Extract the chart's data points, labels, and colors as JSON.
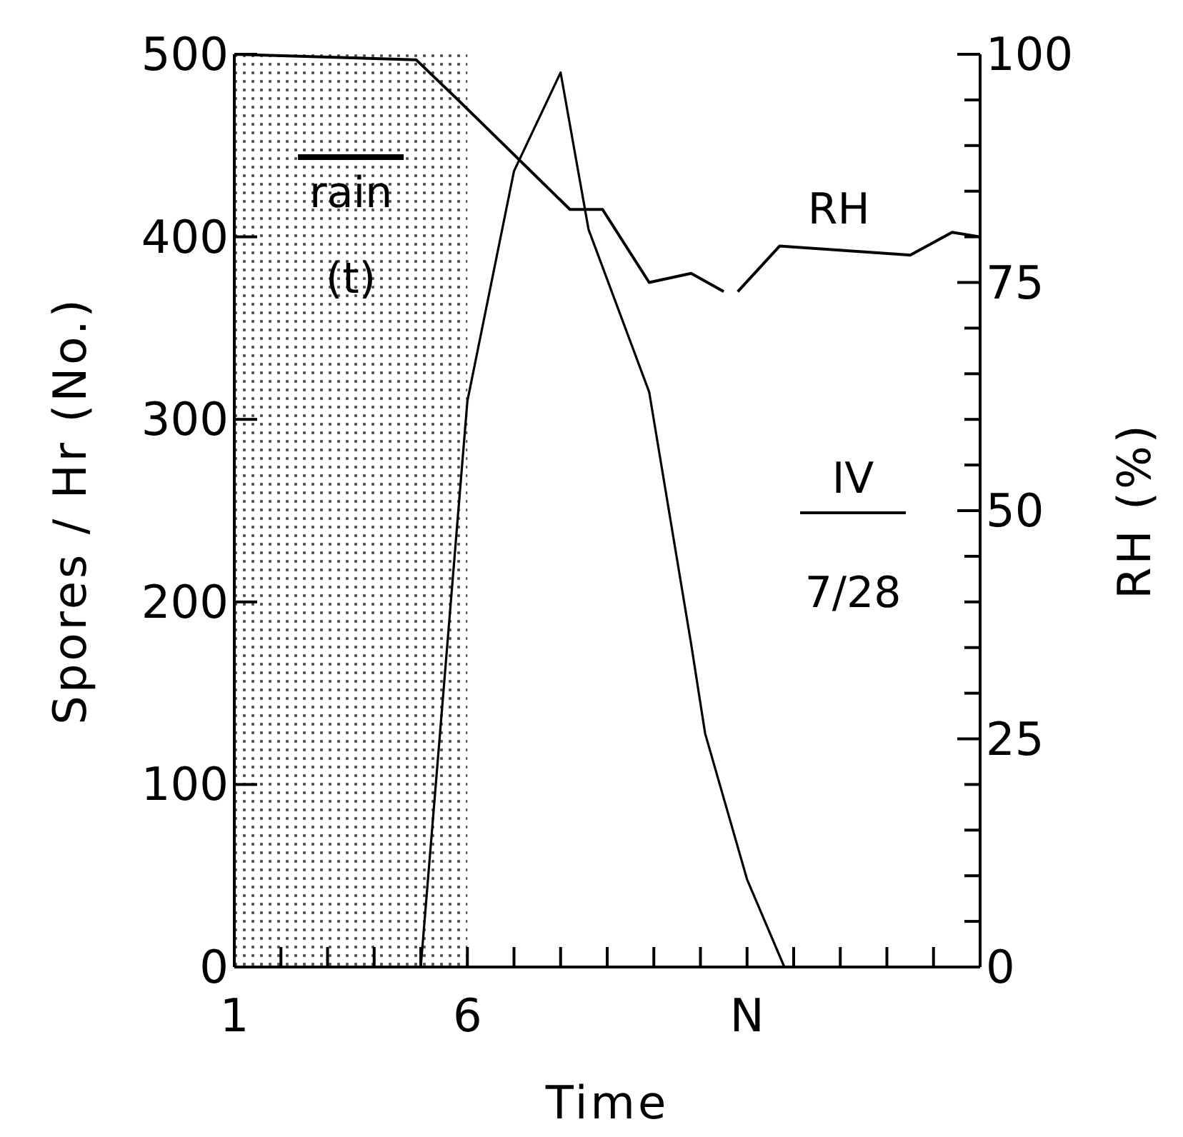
{
  "chart_data": {
    "type": "line",
    "xlabel": "Time",
    "ylabel": "Spores / Hr (No.)",
    "y2label": "RH (%)",
    "xlim": [
      1,
      17
    ],
    "xticks": [
      1,
      {
        "value": 2,
        "label": null
      },
      {
        "value": 3,
        "label": null
      },
      {
        "value": 4,
        "label": null
      },
      {
        "value": 5,
        "label": null
      },
      6,
      {
        "value": 7,
        "label": null
      },
      {
        "value": 8,
        "label": null
      },
      {
        "value": 9,
        "label": null
      },
      {
        "value": 10,
        "label": null
      },
      {
        "value": 11,
        "label": null
      },
      {
        "value": 12,
        "label": "N"
      },
      {
        "value": 13,
        "label": null
      },
      {
        "value": 14,
        "label": null
      },
      {
        "value": 15,
        "label": null
      },
      {
        "value": 16,
        "label": null
      }
    ],
    "ylim": [
      0,
      500
    ],
    "yticks": [
      0,
      100,
      200,
      300,
      400,
      500
    ],
    "y2lim": [
      0,
      100
    ],
    "y2ticks": [
      0,
      {
        "value": 5,
        "label": null
      },
      {
        "value": 10,
        "label": null
      },
      {
        "value": 15,
        "label": null
      },
      {
        "value": 20,
        "label": null
      },
      25,
      {
        "value": 30,
        "label": null
      },
      {
        "value": 35,
        "label": null
      },
      {
        "value": 40,
        "label": null
      },
      {
        "value": 45,
        "label": null
      },
      50,
      {
        "value": 55,
        "label": null
      },
      {
        "value": 60,
        "label": null
      },
      {
        "value": 65,
        "label": null
      },
      {
        "value": 70,
        "label": null
      },
      75,
      {
        "value": 80,
        "label": null
      },
      {
        "value": 85,
        "label": null
      },
      {
        "value": 90,
        "label": null
      },
      {
        "value": 95,
        "label": null
      },
      100
    ],
    "series": [
      {
        "color": "#000000",
        "x": [
          5,
          6,
          7,
          8,
          8.6,
          9.9,
          10.8,
          11.1,
          12,
          12.8
        ],
        "values": [
          0,
          310,
          436,
          490,
          404,
          315,
          177,
          128,
          48,
          0
        ]
      },
      {
        "name": "RH",
        "color": "#000000",
        "axis": "y2",
        "x": [
          1,
          4.9,
          5.8,
          8.2,
          8.9,
          9.9,
          10.8,
          11.5,
          11.6,
          11.8,
          12.7,
          15.5,
          16.4,
          17
        ],
        "values": [
          100,
          99.4,
          95,
          83,
          83,
          75,
          76,
          74,
          null,
          74,
          79,
          78,
          80.5,
          80
        ]
      }
    ],
    "bands": [
      {
        "axis": "x",
        "from": 1,
        "to": 6,
        "label": "rain",
        "color": "#555555"
      }
    ],
    "annotations": [
      "(t)",
      "IV",
      "7/28"
    ]
  }
}
